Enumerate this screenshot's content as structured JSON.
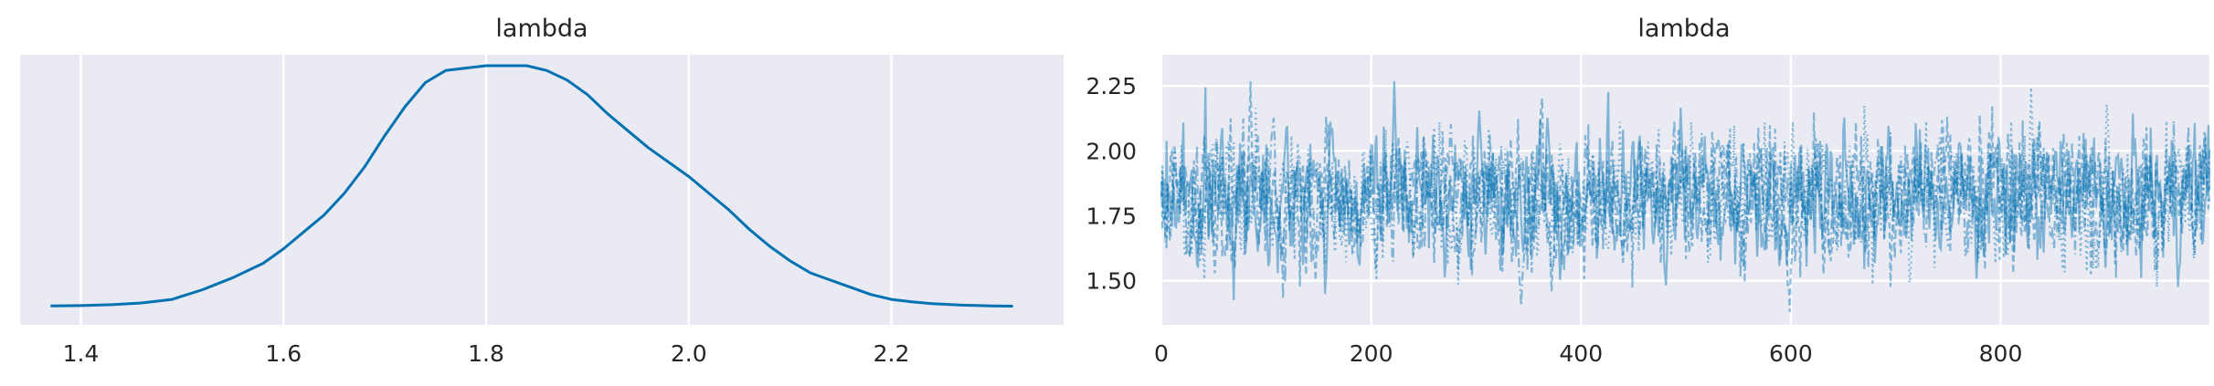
{
  "chart_data": [
    {
      "type": "line",
      "title": "lambda",
      "xlabel": "",
      "ylabel": "",
      "xlim": [
        1.34,
        2.37
      ],
      "xticks": [
        1.4,
        1.6,
        1.8,
        2.0,
        2.2
      ],
      "xtick_labels": [
        "1.4",
        "1.6",
        "1.8",
        "2.0",
        "2.2"
      ],
      "ytick_labels": [],
      "grid": true,
      "line_color": "#0072b2",
      "series": [
        {
          "x": [
            1.37,
            1.4,
            1.43,
            1.46,
            1.49,
            1.52,
            1.55,
            1.58,
            1.6,
            1.62,
            1.64,
            1.66,
            1.68,
            1.7,
            1.72,
            1.74,
            1.76,
            1.78,
            1.8,
            1.82,
            1.84,
            1.86,
            1.88,
            1.9,
            1.92,
            1.94,
            1.96,
            1.98,
            2.0,
            2.02,
            2.04,
            2.06,
            2.08,
            2.1,
            2.12,
            2.14,
            2.16,
            2.18,
            2.2,
            2.22,
            2.24,
            2.27,
            2.3,
            2.32
          ],
          "y": [
            0.003,
            0.004,
            0.008,
            0.015,
            0.03,
            0.07,
            0.12,
            0.18,
            0.24,
            0.31,
            0.38,
            0.47,
            0.58,
            0.71,
            0.83,
            0.93,
            0.98,
            0.99,
            1.0,
            1.0,
            1.0,
            0.98,
            0.94,
            0.88,
            0.8,
            0.73,
            0.66,
            0.6,
            0.54,
            0.47,
            0.4,
            0.32,
            0.25,
            0.19,
            0.14,
            0.11,
            0.08,
            0.05,
            0.03,
            0.02,
            0.012,
            0.006,
            0.003,
            0.002
          ]
        }
      ]
    },
    {
      "type": "line",
      "title": "lambda",
      "xlabel": "",
      "ylabel": "",
      "xlim": [
        0,
        999
      ],
      "ylim": [
        1.33,
        2.37
      ],
      "xticks": [
        0,
        200,
        400,
        600,
        800
      ],
      "xtick_labels": [
        "0",
        "200",
        "400",
        "600",
        "800"
      ],
      "yticks": [
        1.5,
        1.75,
        2.0,
        2.25
      ],
      "ytick_labels": [
        "1.50",
        "1.75",
        "2.00",
        "2.25"
      ],
      "grid": true,
      "line_color": "#0072b2",
      "n_draws": 1000,
      "n_chains": 4,
      "trace_summary": {
        "center": 1.83,
        "spread": 0.13,
        "min": 1.38,
        "max": 2.31
      }
    }
  ]
}
